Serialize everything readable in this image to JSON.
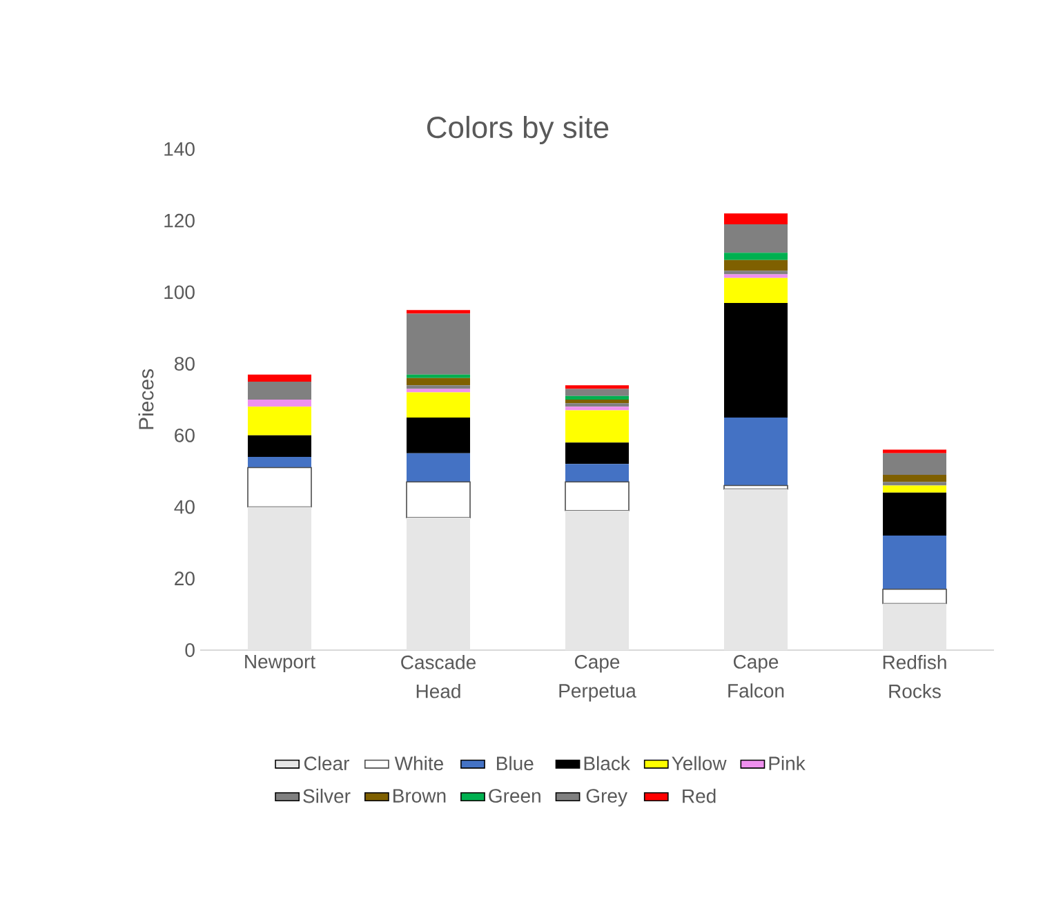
{
  "chart_data": {
    "type": "bar",
    "stacked": true,
    "title": "Colors by site",
    "ylabel": "Pieces",
    "categories": [
      "Newport",
      "Cascade Head",
      "Cape Perpetua",
      "Cape Falcon",
      "Redfish Rocks"
    ],
    "ylim": [
      0,
      140
    ],
    "yticks": [
      0,
      20,
      40,
      60,
      80,
      100,
      120,
      140
    ],
    "grid": false,
    "legend": "bottom",
    "series": [
      {
        "name": "Clear",
        "color": "#e6e6e6",
        "values": [
          40,
          37,
          39,
          45,
          13
        ]
      },
      {
        "name": "White",
        "color": "#ffffff",
        "values": [
          11,
          10,
          8,
          1,
          4
        ]
      },
      {
        "name": "Blue",
        "color": "#4472c4",
        "values": [
          3,
          8,
          5,
          19,
          15
        ]
      },
      {
        "name": "Black",
        "color": "#000000",
        "values": [
          6,
          10,
          6,
          32,
          12
        ]
      },
      {
        "name": "Yellow",
        "color": "#ffff00",
        "values": [
          8,
          7,
          9,
          7,
          2
        ]
      },
      {
        "name": "Pink",
        "color": "#ee90ee",
        "values": [
          2,
          1,
          1,
          1,
          0
        ]
      },
      {
        "name": "Silver",
        "color": "#808080",
        "values": [
          0,
          1,
          1,
          1,
          1
        ]
      },
      {
        "name": "Brown",
        "color": "#7f6000",
        "values": [
          0,
          2,
          1,
          3,
          2
        ]
      },
      {
        "name": "Green",
        "color": "#00b050",
        "values": [
          0,
          1,
          1,
          2,
          0
        ]
      },
      {
        "name": "Grey",
        "color": "#808080",
        "values": [
          5,
          17,
          2,
          8,
          6
        ]
      },
      {
        "name": "Red",
        "color": "#ff0000",
        "values": [
          2,
          1,
          1,
          3,
          1
        ]
      }
    ]
  }
}
